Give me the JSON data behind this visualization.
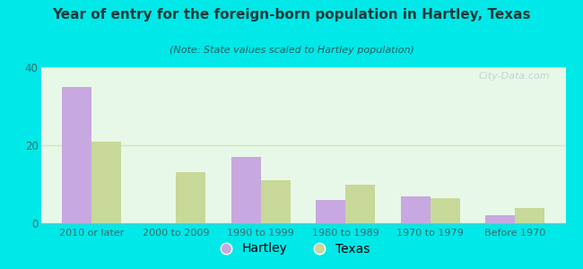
{
  "title": "Year of entry for the foreign-born population in Hartley, Texas",
  "subtitle": "(Note: State values scaled to Hartley population)",
  "categories": [
    "2010 or later",
    "2000 to 2009",
    "1990 to 1999",
    "1980 to 1989",
    "1970 to 1979",
    "Before 1970"
  ],
  "hartley_values": [
    35,
    0,
    17,
    6,
    7,
    2
  ],
  "texas_values": [
    21,
    13,
    11,
    10,
    6.5,
    4
  ],
  "hartley_color": "#c8a8e0",
  "texas_color": "#c8d898",
  "background_outer": "#00e8e8",
  "background_inner": "#e8f8e8",
  "ylim": [
    0,
    40
  ],
  "yticks": [
    0,
    20,
    40
  ],
  "bar_width": 0.35,
  "legend_hartley": "Hartley",
  "legend_texas": "Texas",
  "grid_color": "#d0e8b0",
  "watermark": "City-Data.com",
  "title_color": "#1a3a3a",
  "subtitle_color": "#2a5a5a",
  "tick_color": "#3a6a6a"
}
